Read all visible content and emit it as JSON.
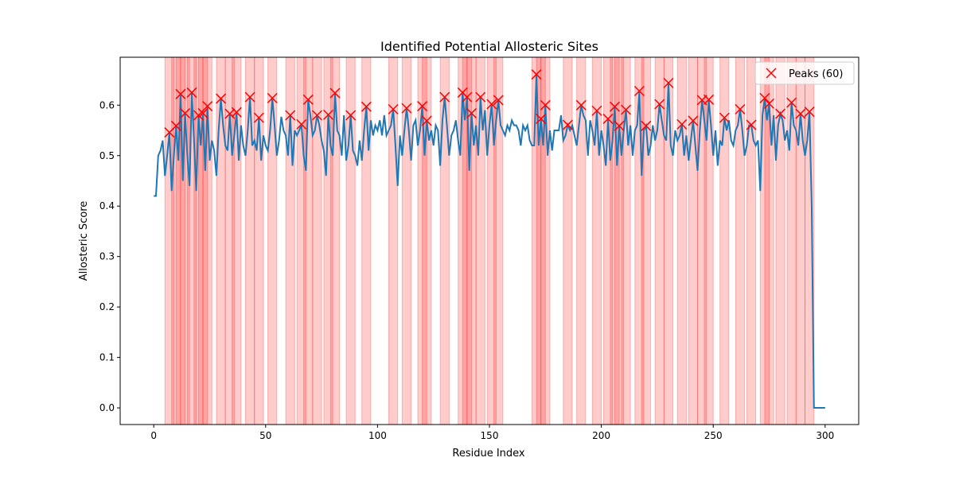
{
  "chart_data": {
    "type": "line",
    "title": "Identified Potential Allosteric Sites",
    "x_label": "Residue Index",
    "y_label": "Allosteric Score",
    "xlim": [
      -15,
      315
    ],
    "ylim": [
      -0.033,
      0.695
    ],
    "xticks": [
      0,
      50,
      100,
      150,
      200,
      250,
      300
    ],
    "yticks": [
      {
        "value": 0,
        "label": "0.0"
      },
      0.1,
      0.2,
      0.3,
      0.4,
      0.5,
      0.6
    ],
    "legend_position": "upper right",
    "x": [
      0,
      1,
      2,
      3,
      4,
      5,
      6,
      7,
      8,
      9,
      10,
      11,
      12,
      13,
      14,
      15,
      16,
      17,
      18,
      19,
      20,
      21,
      22,
      23,
      24,
      25,
      26,
      27,
      28,
      29,
      30,
      31,
      32,
      33,
      34,
      35,
      36,
      37,
      38,
      39,
      40,
      41,
      42,
      43,
      44,
      45,
      46,
      47,
      48,
      49,
      50,
      51,
      52,
      53,
      54,
      55,
      56,
      57,
      58,
      59,
      60,
      61,
      62,
      63,
      64,
      65,
      66,
      67,
      68,
      69,
      70,
      71,
      72,
      73,
      74,
      75,
      76,
      77,
      78,
      79,
      80,
      81,
      82,
      83,
      84,
      85,
      86,
      87,
      88,
      89,
      90,
      91,
      92,
      93,
      94,
      95,
      96,
      97,
      98,
      99,
      100,
      101,
      102,
      103,
      104,
      105,
      106,
      107,
      108,
      109,
      110,
      111,
      112,
      113,
      114,
      115,
      116,
      117,
      118,
      119,
      120,
      121,
      122,
      123,
      124,
      125,
      126,
      127,
      128,
      129,
      130,
      131,
      132,
      133,
      134,
      135,
      136,
      137,
      138,
      139,
      140,
      141,
      142,
      143,
      144,
      145,
      146,
      147,
      148,
      149,
      150,
      151,
      152,
      153,
      154,
      155,
      156,
      157,
      158,
      159,
      160,
      161,
      162,
      163,
      164,
      165,
      166,
      167,
      168,
      169,
      170,
      171,
      172,
      173,
      174,
      175,
      176,
      177,
      178,
      179,
      180,
      181,
      182,
      183,
      184,
      185,
      186,
      187,
      188,
      189,
      190,
      191,
      192,
      193,
      194,
      195,
      196,
      197,
      198,
      199,
      200,
      201,
      202,
      203,
      204,
      205,
      206,
      207,
      208,
      209,
      210,
      211,
      212,
      213,
      214,
      215,
      216,
      217,
      218,
      219,
      220,
      221,
      222,
      223,
      224,
      225,
      226,
      227,
      228,
      229,
      230,
      231,
      232,
      233,
      234,
      235,
      236,
      237,
      238,
      239,
      240,
      241,
      242,
      243,
      244,
      245,
      246,
      247,
      248,
      249,
      250,
      251,
      252,
      253,
      254,
      255,
      256,
      257,
      258,
      259,
      260,
      261,
      262,
      263,
      264,
      265,
      266,
      267,
      268,
      269,
      270,
      271,
      272,
      273,
      274,
      275,
      276,
      277,
      278,
      279,
      280,
      281,
      282,
      283,
      284,
      285,
      286,
      287,
      288,
      289,
      290,
      291,
      292,
      293,
      294,
      295,
      296,
      297,
      298,
      299,
      300
    ],
    "series": [
      {
        "color": "#1f77b4",
        "values": [
          0.42,
          0.42,
          0.5,
          0.51,
          0.53,
          0.46,
          0.5,
          0.546,
          0.43,
          0.5,
          0.559,
          0.49,
          0.622,
          0.45,
          0.584,
          0.5,
          0.44,
          0.625,
          0.53,
          0.43,
          0.58,
          0.52,
          0.584,
          0.47,
          0.598,
          0.49,
          0.53,
          0.51,
          0.46,
          0.55,
          0.613,
          0.56,
          0.52,
          0.51,
          0.583,
          0.5,
          0.54,
          0.586,
          0.49,
          0.56,
          0.52,
          0.5,
          0.55,
          0.616,
          0.52,
          0.53,
          0.51,
          0.575,
          0.49,
          0.54,
          0.52,
          0.51,
          0.55,
          0.614,
          0.56,
          0.5,
          0.53,
          0.577,
          0.55,
          0.54,
          0.5,
          0.58,
          0.48,
          0.55,
          0.54,
          0.55,
          0.562,
          0.5,
          0.47,
          0.611,
          0.58,
          0.54,
          0.55,
          0.58,
          0.56,
          0.53,
          0.51,
          0.46,
          0.581,
          0.52,
          0.5,
          0.624,
          0.55,
          0.54,
          0.5,
          0.58,
          0.49,
          0.52,
          0.58,
          0.51,
          0.5,
          0.48,
          0.53,
          0.49,
          0.55,
          0.597,
          0.51,
          0.57,
          0.54,
          0.56,
          0.55,
          0.57,
          0.54,
          0.58,
          0.54,
          0.55,
          0.56,
          0.592,
          0.52,
          0.44,
          0.54,
          0.5,
          0.55,
          0.594,
          0.55,
          0.49,
          0.56,
          0.57,
          0.52,
          0.55,
          0.598,
          0.5,
          0.569,
          0.53,
          0.55,
          0.52,
          0.56,
          0.55,
          0.48,
          0.57,
          0.616,
          0.56,
          0.5,
          0.54,
          0.55,
          0.57,
          0.53,
          0.5,
          0.625,
          0.57,
          0.616,
          0.47,
          0.584,
          0.52,
          0.56,
          0.5,
          0.616,
          0.55,
          0.59,
          0.5,
          0.56,
          0.602,
          0.52,
          0.57,
          0.61,
          0.56,
          0.55,
          0.54,
          0.56,
          0.55,
          0.57,
          0.56,
          0.56,
          0.55,
          0.52,
          0.56,
          0.55,
          0.56,
          0.53,
          0.52,
          0.52,
          0.661,
          0.52,
          0.573,
          0.52,
          0.6,
          0.5,
          0.55,
          0.51,
          0.55,
          0.55,
          0.55,
          0.58,
          0.53,
          0.54,
          0.561,
          0.55,
          0.56,
          0.54,
          0.52,
          0.56,
          0.6,
          0.58,
          0.57,
          0.5,
          0.57,
          0.55,
          0.52,
          0.589,
          0.5,
          0.55,
          0.52,
          0.48,
          0.573,
          0.49,
          0.53,
          0.597,
          0.48,
          0.559,
          0.5,
          0.55,
          0.591,
          0.52,
          0.56,
          0.5,
          0.55,
          0.56,
          0.628,
          0.46,
          0.55,
          0.559,
          0.5,
          0.52,
          0.56,
          0.53,
          0.55,
          0.602,
          0.57,
          0.54,
          0.53,
          0.644,
          0.52,
          0.5,
          0.55,
          0.53,
          0.54,
          0.562,
          0.5,
          0.54,
          0.49,
          0.53,
          0.569,
          0.52,
          0.47,
          0.55,
          0.61,
          0.57,
          0.53,
          0.611,
          0.56,
          0.5,
          0.55,
          0.48,
          0.53,
          0.52,
          0.575,
          0.55,
          0.57,
          0.53,
          0.52,
          0.55,
          0.56,
          0.592,
          0.55,
          0.5,
          0.52,
          0.56,
          0.561,
          0.53,
          0.52,
          0.53,
          0.43,
          0.58,
          0.614,
          0.57,
          0.603,
          0.52,
          0.58,
          0.49,
          0.56,
          0.583,
          0.57,
          0.53,
          0.55,
          0.51,
          0.605,
          0.56,
          0.55,
          0.52,
          0.583,
          0.53,
          0.5,
          0.53,
          0.587,
          0.4,
          0.0,
          0.0,
          0.0,
          0.0,
          0.0,
          0.0
        ]
      }
    ],
    "peaks": {
      "name": "Peaks (60)",
      "color": "#ff0000",
      "x": [
        7,
        10,
        12,
        14,
        17,
        20,
        22,
        24,
        30,
        34,
        37,
        43,
        47,
        53,
        61,
        66,
        69,
        73,
        78,
        81,
        88,
        95,
        107,
        113,
        120,
        122,
        130,
        138,
        140,
        142,
        146,
        151,
        154,
        171,
        173,
        175,
        185,
        191,
        198,
        203,
        206,
        208,
        211,
        217,
        220,
        226,
        230,
        236,
        241,
        245,
        248,
        255,
        262,
        267,
        273,
        275,
        280,
        285,
        289,
        293
      ]
    },
    "region_color": "#ff0000",
    "regions": [
      [
        5,
        9
      ],
      [
        8,
        12
      ],
      [
        10,
        14
      ],
      [
        12,
        16
      ],
      [
        15,
        19
      ],
      [
        18,
        22
      ],
      [
        20,
        24
      ],
      [
        22,
        26
      ],
      [
        28,
        32
      ],
      [
        32,
        36
      ],
      [
        35,
        39
      ],
      [
        41,
        45
      ],
      [
        45,
        49
      ],
      [
        51,
        55
      ],
      [
        59,
        63
      ],
      [
        64,
        68
      ],
      [
        67,
        71
      ],
      [
        71,
        75
      ],
      [
        76,
        80
      ],
      [
        79,
        83
      ],
      [
        86,
        90
      ],
      [
        93,
        97
      ],
      [
        105,
        109
      ],
      [
        111,
        115
      ],
      [
        118,
        122
      ],
      [
        120,
        124
      ],
      [
        128,
        132
      ],
      [
        136,
        140
      ],
      [
        138,
        142
      ],
      [
        140,
        144
      ],
      [
        144,
        148
      ],
      [
        149,
        153
      ],
      [
        152,
        156
      ],
      [
        169,
        173
      ],
      [
        171,
        175
      ],
      [
        173,
        177
      ],
      [
        183,
        187
      ],
      [
        189,
        193
      ],
      [
        196,
        200
      ],
      [
        201,
        205
      ],
      [
        204,
        208
      ],
      [
        206,
        210
      ],
      [
        209,
        213
      ],
      [
        215,
        219
      ],
      [
        218,
        222
      ],
      [
        224,
        228
      ],
      [
        228,
        232
      ],
      [
        234,
        238
      ],
      [
        239,
        243
      ],
      [
        243,
        247
      ],
      [
        246,
        250
      ],
      [
        253,
        257
      ],
      [
        260,
        264
      ],
      [
        265,
        269
      ],
      [
        271,
        275
      ],
      [
        273,
        277
      ],
      [
        278,
        282
      ],
      [
        283,
        287
      ],
      [
        287,
        291
      ],
      [
        291,
        295
      ]
    ]
  }
}
